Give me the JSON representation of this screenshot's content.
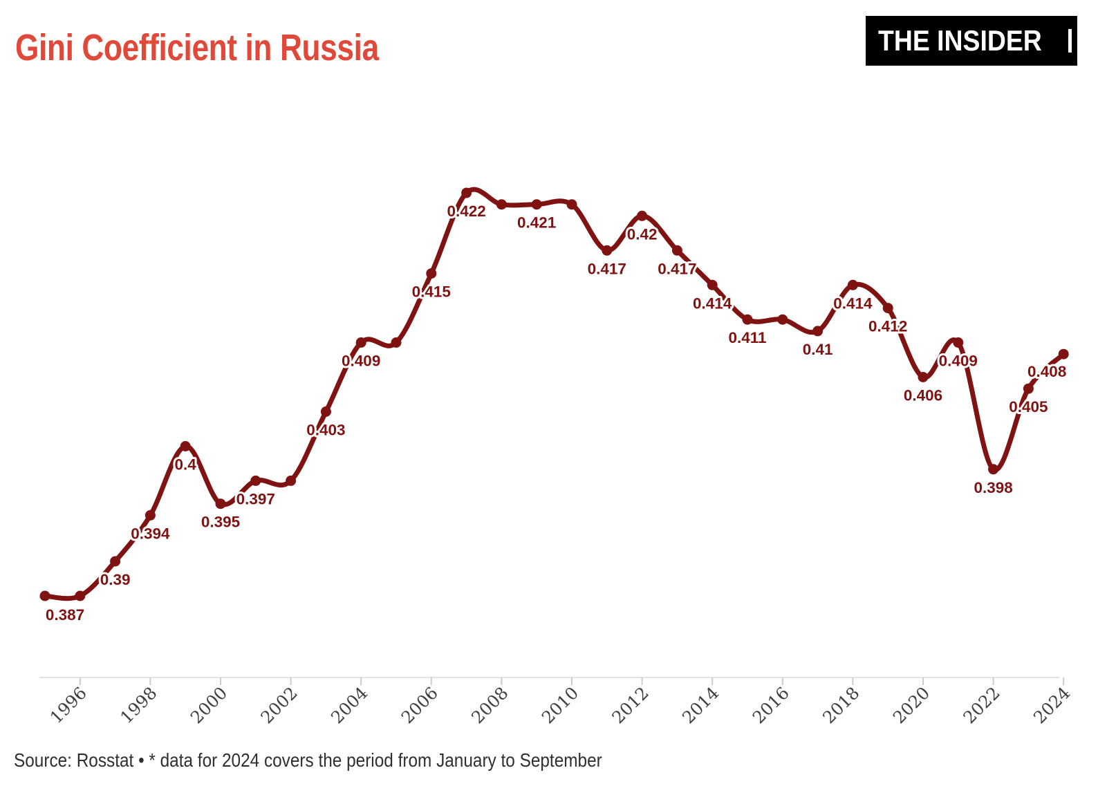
{
  "header": {
    "title": "Gini Coefficient in Russia",
    "logo_text": "THE INSIDER"
  },
  "footer": {
    "source": "Source: Rosstat • * data for 2024 covers the period from January to September"
  },
  "colors": {
    "title": "#e0493a",
    "line": "#7e1312",
    "point": "#7e1312",
    "data_label": "#7e1312",
    "data_label_halo": "#ffffff",
    "axis_line": "#e3e3e3",
    "tick": "#cccccc",
    "tick_label": "#3f3f3f",
    "logo_bg": "#000000",
    "logo_text": "#ffffff",
    "source_text": "#2f2f2f"
  },
  "chart_data": {
    "type": "line",
    "title": "Gini Coefficient in Russia",
    "xlabel": "",
    "ylabel": "",
    "x": [
      1995,
      1996,
      1997,
      1998,
      1999,
      2000,
      2001,
      2002,
      2003,
      2004,
      2005,
      2006,
      2007,
      2008,
      2009,
      2010,
      2011,
      2012,
      2013,
      2014,
      2015,
      2016,
      2017,
      2018,
      2019,
      2020,
      2021,
      2022,
      2023,
      2024
    ],
    "values": [
      0.387,
      0.387,
      0.39,
      0.394,
      0.4,
      0.395,
      0.397,
      0.397,
      0.403,
      0.409,
      0.409,
      0.415,
      0.422,
      0.421,
      0.421,
      0.421,
      0.417,
      0.42,
      0.417,
      0.414,
      0.411,
      0.411,
      0.41,
      0.414,
      0.412,
      0.406,
      0.409,
      0.398,
      0.405,
      0.408
    ],
    "point_labels": [
      "0.387",
      "",
      "0.39",
      "0.394",
      "0.4",
      "0.395",
      "0.397",
      "",
      "0.403",
      "0.409",
      "",
      "0.415",
      "0.422",
      "",
      "0.421",
      "",
      "0.417",
      "0.42",
      "0.417",
      "0.414",
      "0.411",
      "",
      "0.41",
      "0.414",
      "0.412",
      "0.406",
      "0.409",
      "0.398",
      "0.405",
      "0.408"
    ],
    "x_tick_labels": [
      "1996",
      "1998",
      "2000",
      "2002",
      "2004",
      "2006",
      "2008",
      "2010",
      "2012",
      "2014",
      "2016",
      "2018",
      "2020",
      "2022",
      "2024"
    ],
    "xlim": [
      1995,
      2024
    ],
    "ylim": [
      0.385,
      0.424
    ],
    "grid": false,
    "legend": false,
    "y_axis_visible": false,
    "smoothed": true,
    "label_offsets": {
      "1995": [
        29,
        35
      ],
      "2024": [
        -24,
        33
      ]
    }
  }
}
